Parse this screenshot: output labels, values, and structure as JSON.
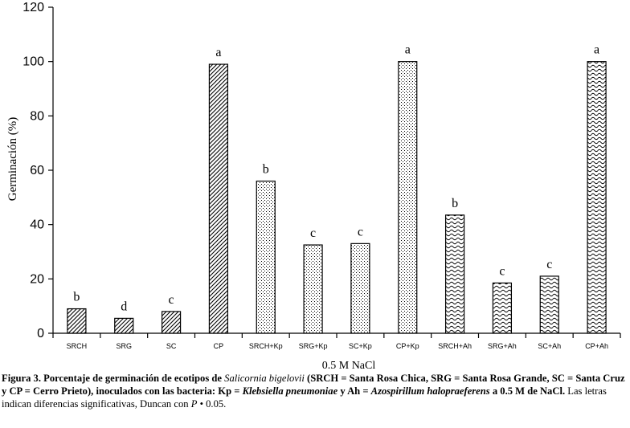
{
  "chart_data": {
    "type": "bar",
    "title": "",
    "xlabel": "0.5 M NaCl",
    "ylabel": "Germinación (%)",
    "ylim": [
      0,
      120
    ],
    "yticks": [
      0,
      20,
      40,
      60,
      80,
      100,
      120
    ],
    "grid": false,
    "categories": [
      "SRCH",
      "SRG",
      "SC",
      "CP",
      "SRCH+Kp",
      "SRG+Kp",
      "SC+Kp",
      "CP+Kp",
      "SRCH+Ah",
      "SRG+Ah",
      "SC+Ah",
      "CP+Ah"
    ],
    "values": [
      9,
      5.5,
      8,
      99,
      56,
      32.5,
      33,
      100,
      43.5,
      18.5,
      21,
      100
    ],
    "letters": [
      "b",
      "d",
      "c",
      "a",
      "b",
      "c",
      "c",
      "a",
      "b",
      "c",
      "c",
      "a"
    ],
    "patterns": [
      "diagonal",
      "diagonal",
      "diagonal",
      "diagonal",
      "dots",
      "dots",
      "dots",
      "dots",
      "waves",
      "waves",
      "waves",
      "waves"
    ]
  },
  "caption": {
    "label": "Figura 3.",
    "part1": "Porcentaje de germinación de ecotipos de",
    "species": "Salicornia bigelovii",
    "part2": "(SRCH = Santa Rosa Chica, SRG = Santa Rosa Grande, SC = Santa Cruz y CP = Cerro Prieto), inoculados con las bacteria: Kp =",
    "kp_species": "Klebsiella pneumoniae",
    "part3": "y Ah =",
    "ah_species": "Azospirillum halopraeferens",
    "part4": "a 0.5 M de NaCl.",
    "note": "Las letras indican diferencias significativas, Duncan con",
    "p_symbol": "P",
    "p_value": "• 0.05."
  }
}
